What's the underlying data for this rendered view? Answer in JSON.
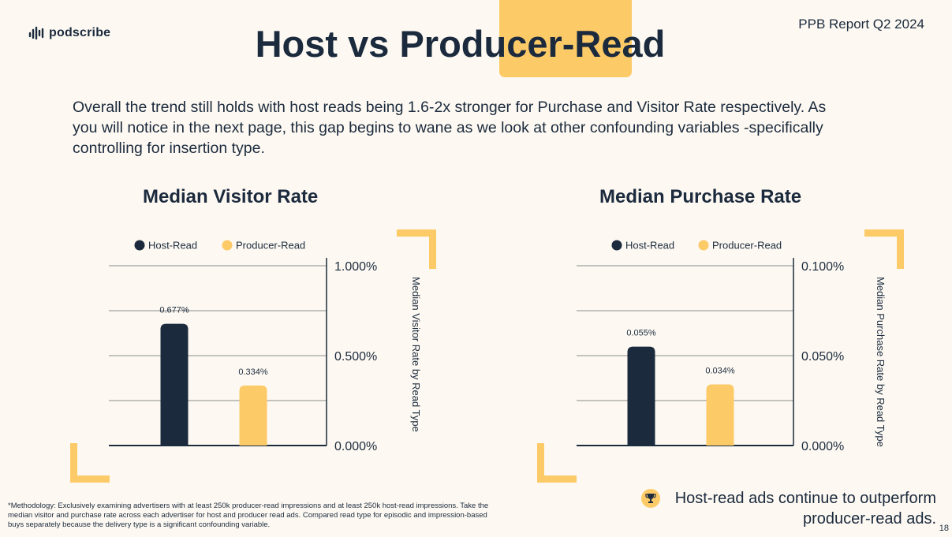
{
  "brand": {
    "name": "podscribe"
  },
  "report_label": "PPB Report Q2 2024",
  "title": "Host vs Producer-Read",
  "intro": "Overall the trend still holds with host reads being 1.6-2x stronger for Purchase and Visitor Rate respectively. As you will notice in the next page, this gap begins to wane as we look at other confounding variables -specifically controlling for insertion type.",
  "colors": {
    "host": "#1b2a3d",
    "producer": "#fdca68",
    "accent": "#fdca68",
    "grid": "#8a8a8a"
  },
  "chart_data": [
    {
      "type": "bar",
      "title": "Median Visitor Rate",
      "categories": [
        "Host-Read",
        "Producer-Read"
      ],
      "values": [
        0.677,
        0.334
      ],
      "data_labels": [
        "0.677%",
        "0.334%"
      ],
      "legend": [
        "Host-Read",
        "Producer-Read"
      ],
      "ylabel": "Median Visitor Rate by Read Type",
      "ylim": [
        0,
        1.0
      ],
      "yticks": [
        0,
        0.5,
        1.0
      ],
      "ytick_labels": [
        "0.000%",
        "0.500%",
        "1.000%"
      ],
      "gridlines": [
        0.25,
        0.5,
        0.75,
        1.0
      ]
    },
    {
      "type": "bar",
      "title": "Median Purchase Rate",
      "categories": [
        "Host-Read",
        "Producer-Read"
      ],
      "values": [
        0.055,
        0.034
      ],
      "data_labels": [
        "0.055%",
        "0.034%"
      ],
      "legend": [
        "Host-Read",
        "Producer-Read"
      ],
      "ylabel": "Median Purchase  Rate by Read Type",
      "ylim": [
        0,
        0.1
      ],
      "yticks": [
        0,
        0.05,
        0.1
      ],
      "ytick_labels": [
        "0.000%",
        "0.050%",
        "0.100%"
      ],
      "gridlines": [
        0.025,
        0.05,
        0.075,
        0.1
      ]
    }
  ],
  "footnote": "*Methodology: Exclusively examining advertisers with at least 250k producer-read impressions and at least 250k host-read impressions. Take the median visitor and purchase rate across each advertiser for host and producer read ads. Compared read type for episodic and impression-based buys separately because the delivery type is a significant confounding variable.",
  "takeaway": {
    "line1": "Host-read ads continue to outperform",
    "line2": "producer-read ads.",
    "icon": "trophy-icon"
  },
  "page_number": "18"
}
